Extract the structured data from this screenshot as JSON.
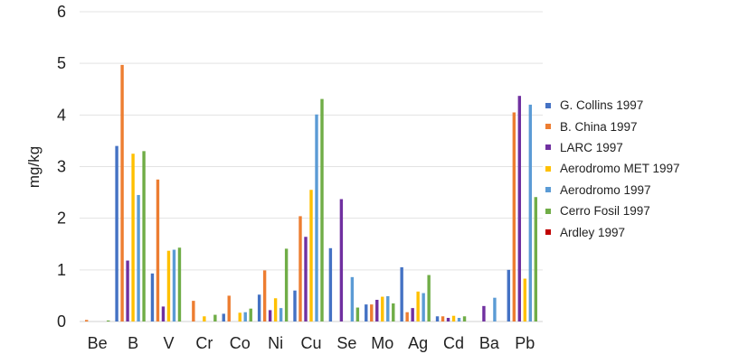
{
  "chart_data": {
    "type": "bar",
    "title": "",
    "xlabel": "",
    "ylabel": "mg/kg",
    "ylim": [
      0,
      6
    ],
    "yticks": [
      "0",
      "1",
      "2",
      "3",
      "4",
      "5",
      "6"
    ],
    "grid": true,
    "legend_position": "right",
    "categories": [
      "Be",
      "B",
      "V",
      "Cr",
      "Co",
      "Ni",
      "Cu",
      "Se",
      "Mo",
      "Ag",
      "Cd",
      "Ba",
      "Pb"
    ],
    "series": [
      {
        "name": "G. Collins 1997",
        "color": "#4472C4",
        "values": [
          0,
          3.4,
          0.93,
          0,
          0.15,
          0.52,
          0.6,
          1.42,
          0.33,
          1.05,
          0.1,
          0,
          1.0
        ]
      },
      {
        "name": "B. China 1997",
        "color": "#ED7D31",
        "values": [
          0.03,
          4.97,
          2.75,
          0.4,
          0.5,
          0.99,
          2.04,
          0,
          0.33,
          0.18,
          0.1,
          0,
          4.05
        ]
      },
      {
        "name": "LARC 1997",
        "color": "#7030A0",
        "values": [
          0,
          1.18,
          0.29,
          0,
          0,
          0.22,
          1.64,
          2.37,
          0.42,
          0.26,
          0.07,
          0.3,
          4.37
        ]
      },
      {
        "name": "Aerodromo MET  1997",
        "color": "#FFC000",
        "values": [
          0,
          3.25,
          1.37,
          0.1,
          0.17,
          0.45,
          2.55,
          0,
          0.48,
          0.58,
          0.11,
          0,
          0.83
        ]
      },
      {
        "name": "Aerodromo 1997",
        "color": "#5B9BD5",
        "values": [
          0,
          2.45,
          1.39,
          0,
          0.18,
          0.26,
          4.01,
          0.86,
          0.49,
          0.55,
          0.07,
          0.46,
          4.2
        ]
      },
      {
        "name": "Cerro Fosil 1997",
        "color": "#70AD47",
        "values": [
          0.02,
          3.3,
          1.43,
          0.13,
          0.25,
          1.41,
          4.31,
          0.27,
          0.35,
          0.9,
          0.1,
          0,
          2.41
        ]
      },
      {
        "name": "Ardley 1997",
        "color": "#C00000",
        "values": [
          0,
          0,
          0,
          0,
          0,
          0,
          0,
          0,
          0,
          0,
          0,
          0,
          0
        ]
      }
    ]
  }
}
